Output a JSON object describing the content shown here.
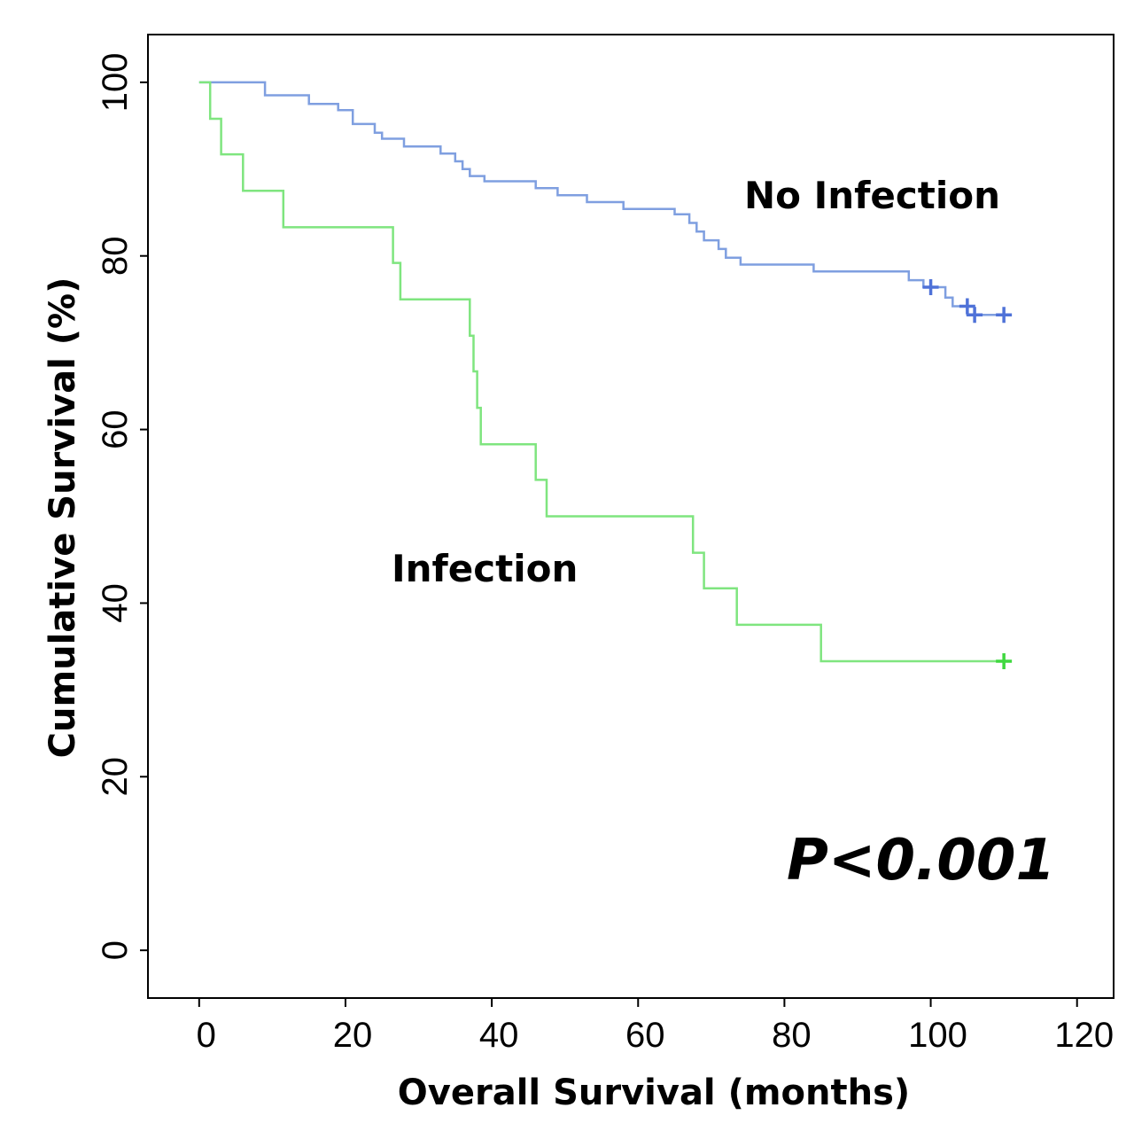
{
  "chart_data": {
    "type": "line",
    "title": "",
    "xlabel": "Overall Survival (months)",
    "ylabel": "Cumulative Survival (%)",
    "xlim": [
      -7,
      125
    ],
    "ylim": [
      -5.5,
      105.5
    ],
    "xticks": [
      0,
      20,
      40,
      60,
      80,
      100,
      120
    ],
    "yticks": [
      0,
      20,
      40,
      60,
      80,
      100
    ],
    "xtick_labels": [
      "0",
      "20",
      "40",
      "60",
      "80",
      "100",
      "120"
    ],
    "ytick_labels": [
      "0",
      "20",
      "40",
      "60",
      "80",
      "100"
    ],
    "grid": false,
    "annotation": "P<0.001",
    "series": [
      {
        "name": "No Infection",
        "color": "#7f9fe0",
        "censor_color": "#4f72d8",
        "step_points": [
          [
            0,
            100
          ],
          [
            9,
            100
          ],
          [
            9,
            98.5
          ],
          [
            15,
            98.5
          ],
          [
            15,
            97.5
          ],
          [
            19,
            97.5
          ],
          [
            19,
            96.8
          ],
          [
            21,
            96.8
          ],
          [
            21,
            95.2
          ],
          [
            24,
            95.2
          ],
          [
            24,
            94.2
          ],
          [
            25,
            94.2
          ],
          [
            25,
            93.5
          ],
          [
            28,
            93.5
          ],
          [
            28,
            92.6
          ],
          [
            33,
            92.6
          ],
          [
            33,
            91.8
          ],
          [
            35,
            91.8
          ],
          [
            35,
            90.9
          ],
          [
            36,
            90.9
          ],
          [
            36,
            90
          ],
          [
            37,
            90
          ],
          [
            37,
            89.2
          ],
          [
            39,
            89.2
          ],
          [
            39,
            88.6
          ],
          [
            46,
            88.6
          ],
          [
            46,
            87.8
          ],
          [
            49,
            87.8
          ],
          [
            49,
            87
          ],
          [
            53,
            87
          ],
          [
            53,
            86.2
          ],
          [
            58,
            86.2
          ],
          [
            58,
            85.4
          ],
          [
            65,
            85.4
          ],
          [
            65,
            84.8
          ],
          [
            67,
            84.8
          ],
          [
            67,
            83.8
          ],
          [
            68,
            83.8
          ],
          [
            68,
            82.8
          ],
          [
            69,
            82.8
          ],
          [
            69,
            81.8
          ],
          [
            71,
            81.8
          ],
          [
            71,
            80.8
          ],
          [
            72,
            80.8
          ],
          [
            72,
            79.8
          ],
          [
            74,
            79.8
          ],
          [
            74,
            79
          ],
          [
            84,
            79
          ],
          [
            84,
            78.2
          ],
          [
            97,
            78.2
          ],
          [
            97,
            77.2
          ],
          [
            99,
            77.2
          ],
          [
            99,
            76.4
          ],
          [
            102,
            76.4
          ],
          [
            102,
            75.2
          ],
          [
            103,
            75.2
          ],
          [
            103,
            74.2
          ],
          [
            105,
            74.2
          ],
          [
            105,
            73.2
          ],
          [
            110,
            73.2
          ]
        ],
        "censors": [
          [
            100,
            76.4
          ],
          [
            105,
            74.2
          ],
          [
            106,
            73.2
          ],
          [
            110,
            73.2
          ]
        ]
      },
      {
        "name": "Infection",
        "color": "#7fe57f",
        "censor_color": "#3fd83f",
        "step_points": [
          [
            0,
            100
          ],
          [
            1.5,
            100
          ],
          [
            1.5,
            95.8
          ],
          [
            3,
            95.8
          ],
          [
            3,
            91.7
          ],
          [
            6,
            91.7
          ],
          [
            6,
            87.5
          ],
          [
            11.5,
            87.5
          ],
          [
            11.5,
            83.3
          ],
          [
            26.5,
            83.3
          ],
          [
            26.5,
            79.2
          ],
          [
            27.5,
            79.2
          ],
          [
            27.5,
            75
          ],
          [
            37,
            75
          ],
          [
            37,
            70.8
          ],
          [
            37.5,
            70.8
          ],
          [
            37.5,
            66.7
          ],
          [
            38,
            66.7
          ],
          [
            38,
            62.5
          ],
          [
            38.5,
            62.5
          ],
          [
            38.5,
            58.3
          ],
          [
            46,
            58.3
          ],
          [
            46,
            54.2
          ],
          [
            47.5,
            54.2
          ],
          [
            47.5,
            50
          ],
          [
            67.5,
            50
          ],
          [
            67.5,
            45.8
          ],
          [
            69,
            45.8
          ],
          [
            69,
            41.7
          ],
          [
            73.5,
            41.7
          ],
          [
            73.5,
            37.5
          ],
          [
            85,
            37.5
          ],
          [
            85,
            33.3
          ],
          [
            110,
            33.3
          ]
        ],
        "censors": [
          [
            110,
            33.3
          ]
        ]
      }
    ]
  }
}
